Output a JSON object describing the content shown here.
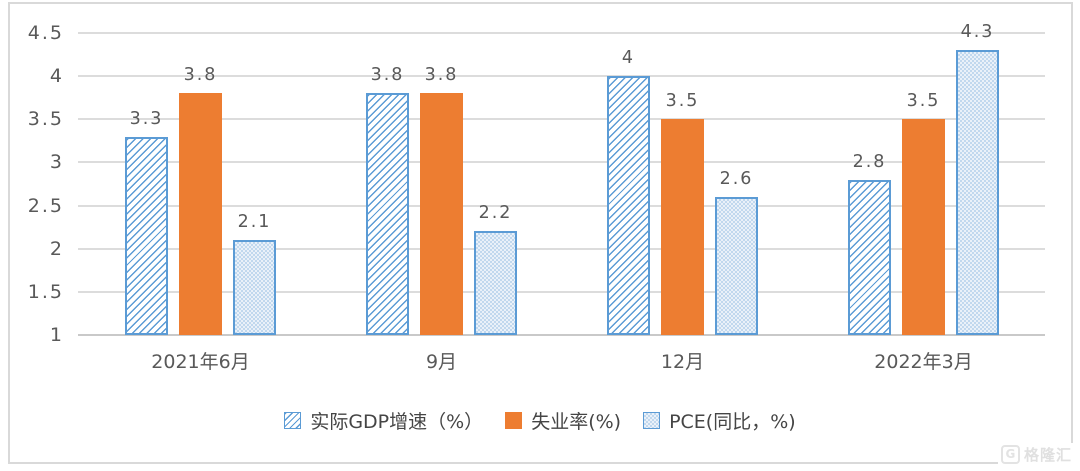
{
  "chart_data": {
    "type": "bar",
    "title": "",
    "categories": [
      "2021年6月",
      "9月",
      "12月",
      "2022年3月"
    ],
    "series": [
      {
        "name": "实际GDP增速（%）",
        "values": [
          3.3,
          3.8,
          4,
          2.8
        ],
        "labels": [
          "3.3",
          "3.8",
          "4",
          "2.8"
        ],
        "style": "diagonal-hatch",
        "color": "#5B9BD5"
      },
      {
        "name": "失业率(%)",
        "values": [
          3.8,
          3.8,
          3.5,
          3.5
        ],
        "labels": [
          "3.8",
          "3.8",
          "3.5",
          "3.5"
        ],
        "style": "solid",
        "color": "#ED7D31"
      },
      {
        "name": "PCE(同比，%)",
        "values": [
          2.1,
          2.2,
          2.6,
          4.3
        ],
        "labels": [
          "2.1",
          "2.2",
          "2.6",
          "4.3"
        ],
        "style": "dotted-fill",
        "color": "#5B9BD5",
        "fill": "#DEEBF7"
      }
    ],
    "ylim": [
      1,
      4.5
    ],
    "ytick_step": 0.5,
    "yticks": [
      "4.5",
      "4",
      "3.5",
      "3",
      "2.5",
      "2",
      "1.5",
      "1"
    ],
    "ytick_values": [
      4.5,
      4,
      3.5,
      3,
      2.5,
      2,
      1.5,
      1
    ],
    "grid": true,
    "gridline_color": "#DCDCDC",
    "data_labels": true,
    "legend_position": "bottom",
    "text_color": "#595959"
  },
  "watermark": {
    "logo": "G",
    "text": "格隆汇"
  }
}
